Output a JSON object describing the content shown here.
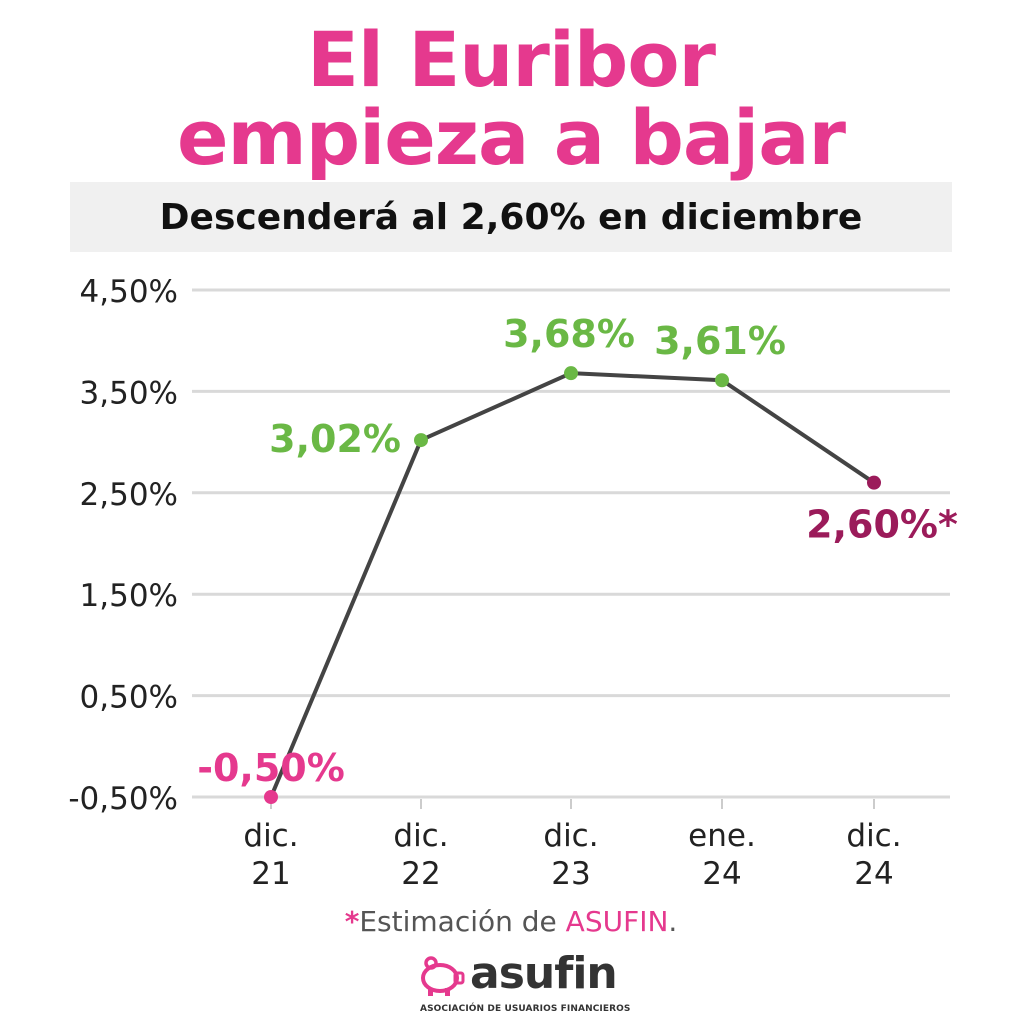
{
  "title": {
    "line1": "El Euribor",
    "line2": "empieza a bajar"
  },
  "subtitle": "Descenderá al 2,60% en diciembre",
  "chart_data": {
    "type": "line",
    "categories": [
      [
        "dic.",
        "21"
      ],
      [
        "dic.",
        "22"
      ],
      [
        "dic.",
        "23"
      ],
      [
        "ene.",
        "24"
      ],
      [
        "dic.",
        "24"
      ]
    ],
    "values": [
      -0.5,
      3.02,
      3.68,
      3.61,
      2.6
    ],
    "data_labels": [
      "-0,50%",
      "3,02%",
      "3,68%",
      "3,61%",
      "2,60%*"
    ],
    "point_colors": [
      "#e5398e",
      "#6ab845",
      "#6ab845",
      "#6ab845",
      "#9b1b5a"
    ],
    "y_ticks": [
      -0.5,
      0.5,
      1.5,
      2.5,
      3.5,
      4.5
    ],
    "y_tick_labels": [
      "-0,50%",
      "0,50%",
      "1,50%",
      "2,50%",
      "3,50%",
      "4,50%"
    ],
    "ylim": [
      -0.5,
      4.5
    ],
    "grid": true,
    "line_color": "#444444"
  },
  "footnote": {
    "star": "*",
    "text": "Estimación de ",
    "brand": "ASUFIN",
    "end": "."
  },
  "logo": {
    "word": "asufin",
    "subtitle": "ASOCIACIÓN DE USUARIOS FINANCIEROS"
  },
  "colors": {
    "accent": "#e5398e",
    "green": "#6ab845",
    "estimate": "#9b1b5a"
  }
}
